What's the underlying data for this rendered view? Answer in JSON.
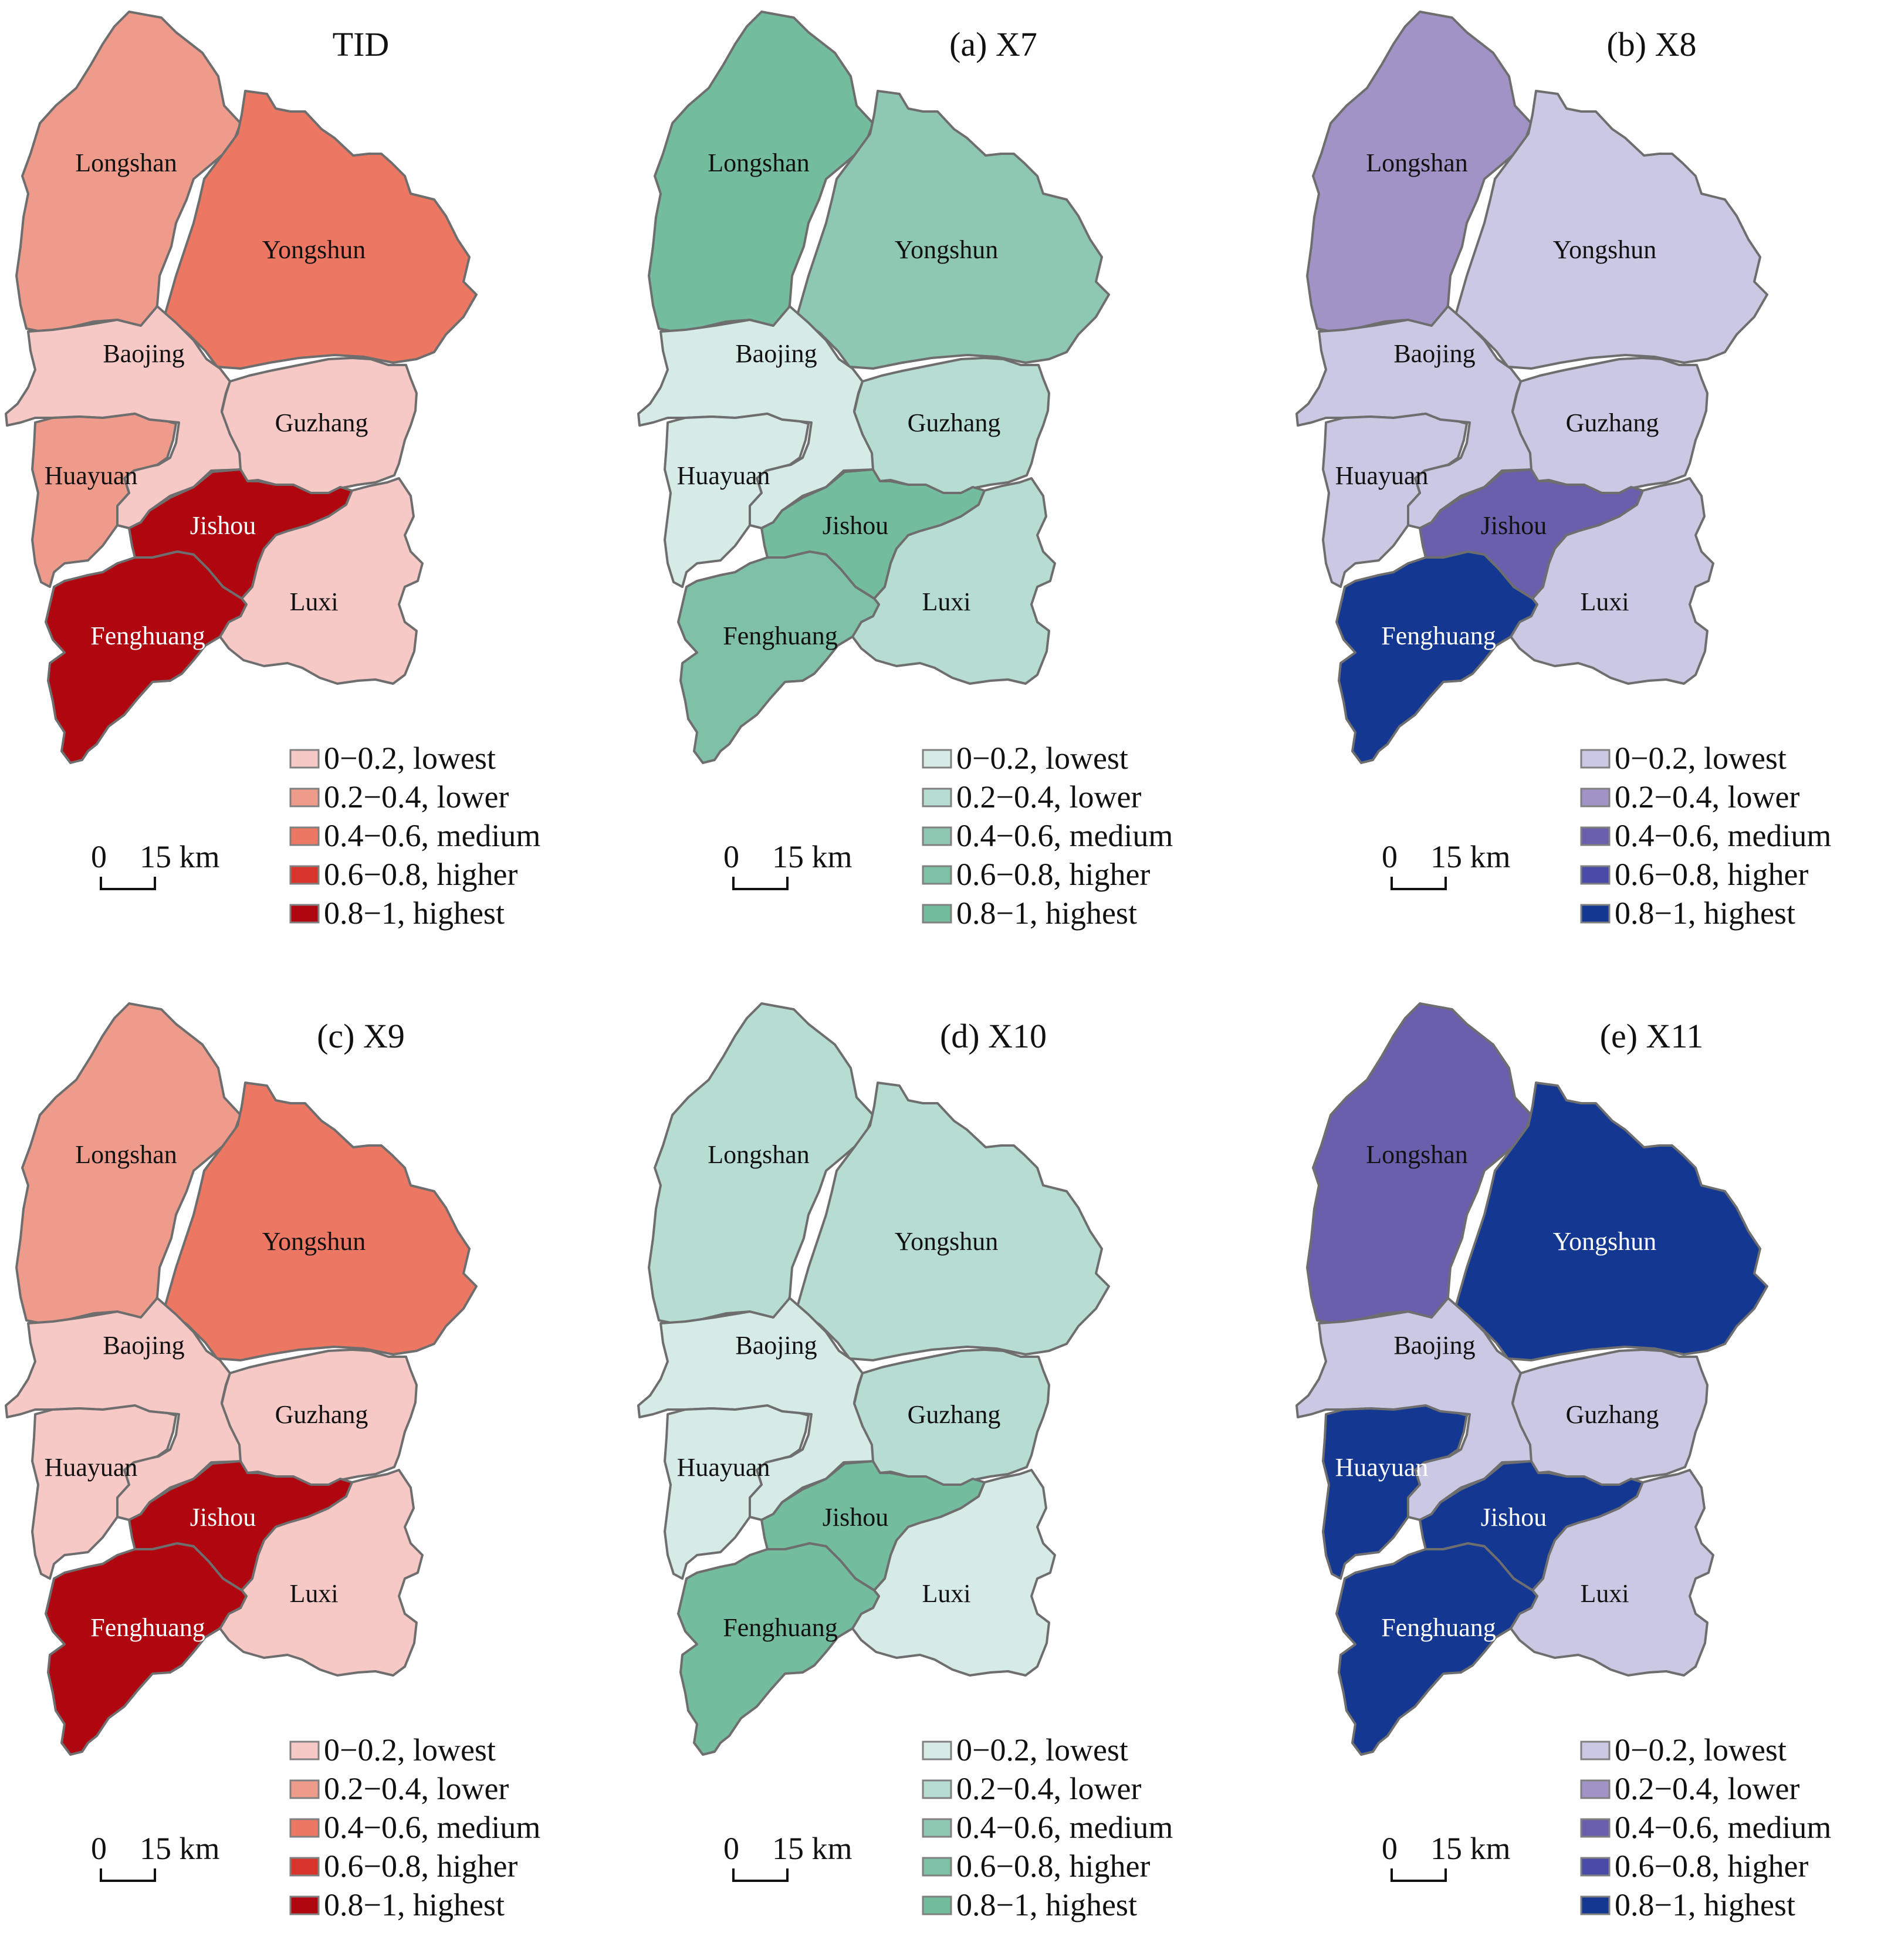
{
  "panels": [
    {
      "title": "TID",
      "regions": [
        {
          "name": "Longshan",
          "class": "lower"
        },
        {
          "name": "Yongshun",
          "class": "medium"
        },
        {
          "name": "Baojing",
          "class": "lowest"
        },
        {
          "name": "Guzhang",
          "class": "lowest"
        },
        {
          "name": "Huayuan",
          "class": "lower"
        },
        {
          "name": "Jishou",
          "class": "highest"
        },
        {
          "name": "Luxi",
          "class": "lowest"
        },
        {
          "name": "Fenghuang",
          "class": "highest"
        }
      ],
      "colors": [
        "#f6c9c6",
        "#ef9b8c",
        "#ec7762",
        "#d9342b",
        "#af0610"
      ]
    },
    {
      "title": "(a) X7",
      "regions": [
        {
          "name": "Longshan",
          "class": "highest"
        },
        {
          "name": "Yongshun",
          "class": "medium"
        },
        {
          "name": "Baojing",
          "class": "lowest"
        },
        {
          "name": "Guzhang",
          "class": "lower"
        },
        {
          "name": "Huayuan",
          "class": "lowest"
        },
        {
          "name": "Jishou",
          "class": "highest"
        },
        {
          "name": "Luxi",
          "class": "lower"
        },
        {
          "name": "Fenghuang",
          "class": "higher"
        }
      ],
      "colors": [
        "#d6eae6",
        "#b7ddd2",
        "#8fc8b2",
        "#7fc1a7",
        "#73bc9d"
      ]
    },
    {
      "title": "(b) X8",
      "regions": [
        {
          "name": "Longshan",
          "class": "lower"
        },
        {
          "name": "Yongshun",
          "class": "lowest"
        },
        {
          "name": "Baojing",
          "class": "lowest"
        },
        {
          "name": "Guzhang",
          "class": "lowest"
        },
        {
          "name": "Huayuan",
          "class": "lowest"
        },
        {
          "name": "Jishou",
          "class": "medium"
        },
        {
          "name": "Luxi",
          "class": "lowest"
        },
        {
          "name": "Fenghuang",
          "class": "highest"
        }
      ],
      "colors": [
        "#cbc8e4",
        "#a193c6",
        "#6a5fad",
        "#4a4ba6",
        "#143891"
      ]
    },
    {
      "title": "(c) X9",
      "regions": [
        {
          "name": "Longshan",
          "class": "lower"
        },
        {
          "name": "Yongshun",
          "class": "medium"
        },
        {
          "name": "Baojing",
          "class": "lowest"
        },
        {
          "name": "Guzhang",
          "class": "lowest"
        },
        {
          "name": "Huayuan",
          "class": "lowest"
        },
        {
          "name": "Jishou",
          "class": "highest"
        },
        {
          "name": "Luxi",
          "class": "lowest"
        },
        {
          "name": "Fenghuang",
          "class": "highest"
        }
      ],
      "colors": [
        "#f6c9c6",
        "#ef9b8c",
        "#ec7762",
        "#d9342b",
        "#af0610"
      ]
    },
    {
      "title": "(d) X10",
      "regions": [
        {
          "name": "Longshan",
          "class": "lower"
        },
        {
          "name": "Yongshun",
          "class": "lower"
        },
        {
          "name": "Baojing",
          "class": "lowest"
        },
        {
          "name": "Guzhang",
          "class": "lower"
        },
        {
          "name": "Huayuan",
          "class": "lowest"
        },
        {
          "name": "Jishou",
          "class": "highest"
        },
        {
          "name": "Luxi",
          "class": "lowest"
        },
        {
          "name": "Fenghuang",
          "class": "highest"
        }
      ],
      "colors": [
        "#d6eae6",
        "#b7ddd2",
        "#8fc8b2",
        "#7fc1a7",
        "#73bc9d"
      ]
    },
    {
      "title": "(e) X11",
      "regions": [
        {
          "name": "Longshan",
          "class": "medium"
        },
        {
          "name": "Yongshun",
          "class": "highest"
        },
        {
          "name": "Baojing",
          "class": "lowest"
        },
        {
          "name": "Guzhang",
          "class": "lowest"
        },
        {
          "name": "Huayuan",
          "class": "highest"
        },
        {
          "name": "Jishou",
          "class": "highest"
        },
        {
          "name": "Luxi",
          "class": "lowest"
        },
        {
          "name": "Fenghuang",
          "class": "highest"
        }
      ],
      "colors": [
        "#cbc8e4",
        "#a193c6",
        "#6a5fad",
        "#4a4ba6",
        "#143891"
      ]
    }
  ],
  "legend": [
    {
      "key": "lowest",
      "label": "0−0.2, lowest"
    },
    {
      "key": "lower",
      "label": "0.2−0.4, lower"
    },
    {
      "key": "medium",
      "label": "0.4−0.6, medium"
    },
    {
      "key": "higher",
      "label": "0.6−0.8, higher"
    },
    {
      "key": "highest",
      "label": "0.8−1, highest"
    }
  ],
  "scale_bar": {
    "start": "0",
    "end": "15 km"
  }
}
